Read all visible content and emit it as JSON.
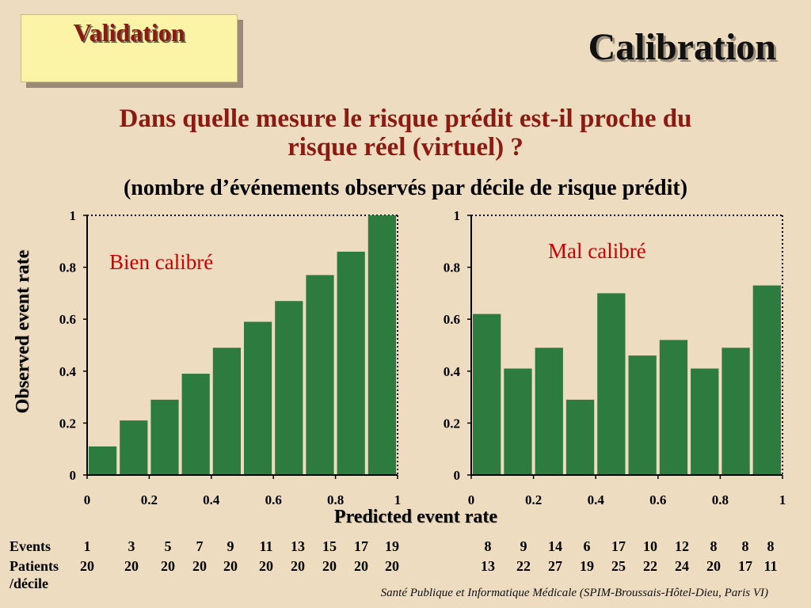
{
  "header": {
    "section_tag": "Validation",
    "title": "Calibration"
  },
  "question": {
    "line1": "Dans quelle mesure le risque prédit est-il proche du",
    "line2": "risque réel (virtuel) ?"
  },
  "subtitle": "(nombre d’événements observés par décile de risque prédit)",
  "axes": {
    "ylabel": "Observed event rate",
    "xlabel": "Predicted event rate"
  },
  "table": {
    "events_label": "Events",
    "patients_label": "Patients",
    "decile_label": "/décile"
  },
  "footer": "Santé Publique et Informatique Médicale (SPIM-Broussais-Hôtel-Dieu, Paris VI)",
  "colors": {
    "bar": "#2d7b3f",
    "title_red": "#8b1a10",
    "label_red": "#cc0000",
    "background": "#eedcc0"
  },
  "chart_data": [
    {
      "type": "bar",
      "panel_label": "Bien calibré",
      "x": [
        0.05,
        0.15,
        0.25,
        0.35,
        0.45,
        0.55,
        0.65,
        0.75,
        0.85,
        0.95
      ],
      "values": [
        0.11,
        0.21,
        0.29,
        0.39,
        0.49,
        0.59,
        0.67,
        0.77,
        0.86,
        1.0
      ],
      "events": [
        "1",
        "3",
        "5",
        "7",
        "9",
        "11",
        "13",
        "15",
        "17",
        "19"
      ],
      "patients": [
        "20",
        "20",
        "20",
        "20",
        "20",
        "20",
        "20",
        "20",
        "20",
        "20"
      ],
      "xlim": [
        0,
        1
      ],
      "ylim": [
        0,
        1
      ],
      "xticks": [
        "0",
        "0.2",
        "0.4",
        "0.6",
        "0.8",
        "1"
      ],
      "yticks": [
        "0",
        "0.2",
        "0.4",
        "0.6",
        "0.8",
        "1"
      ]
    },
    {
      "type": "bar",
      "panel_label": "Mal calibré",
      "x": [
        0.05,
        0.15,
        0.25,
        0.35,
        0.45,
        0.55,
        0.65,
        0.75,
        0.85,
        0.95
      ],
      "values": [
        0.62,
        0.41,
        0.49,
        0.29,
        0.7,
        0.46,
        0.52,
        0.41,
        0.49,
        0.73
      ],
      "events": [
        "8",
        "9",
        "14",
        "6",
        "17",
        "10",
        "12",
        "8",
        "8",
        "8"
      ],
      "patients": [
        "13",
        "22",
        "27",
        "19",
        "25",
        "22",
        "24",
        "20",
        "17",
        "11"
      ],
      "xlim": [
        0,
        1
      ],
      "ylim": [
        0,
        1
      ],
      "xticks": [
        "0",
        "0.2",
        "0.4",
        "0.6",
        "0.8",
        "1"
      ],
      "yticks": [
        "0",
        "0.2",
        "0.4",
        "0.6",
        "0.8",
        "1"
      ]
    }
  ]
}
